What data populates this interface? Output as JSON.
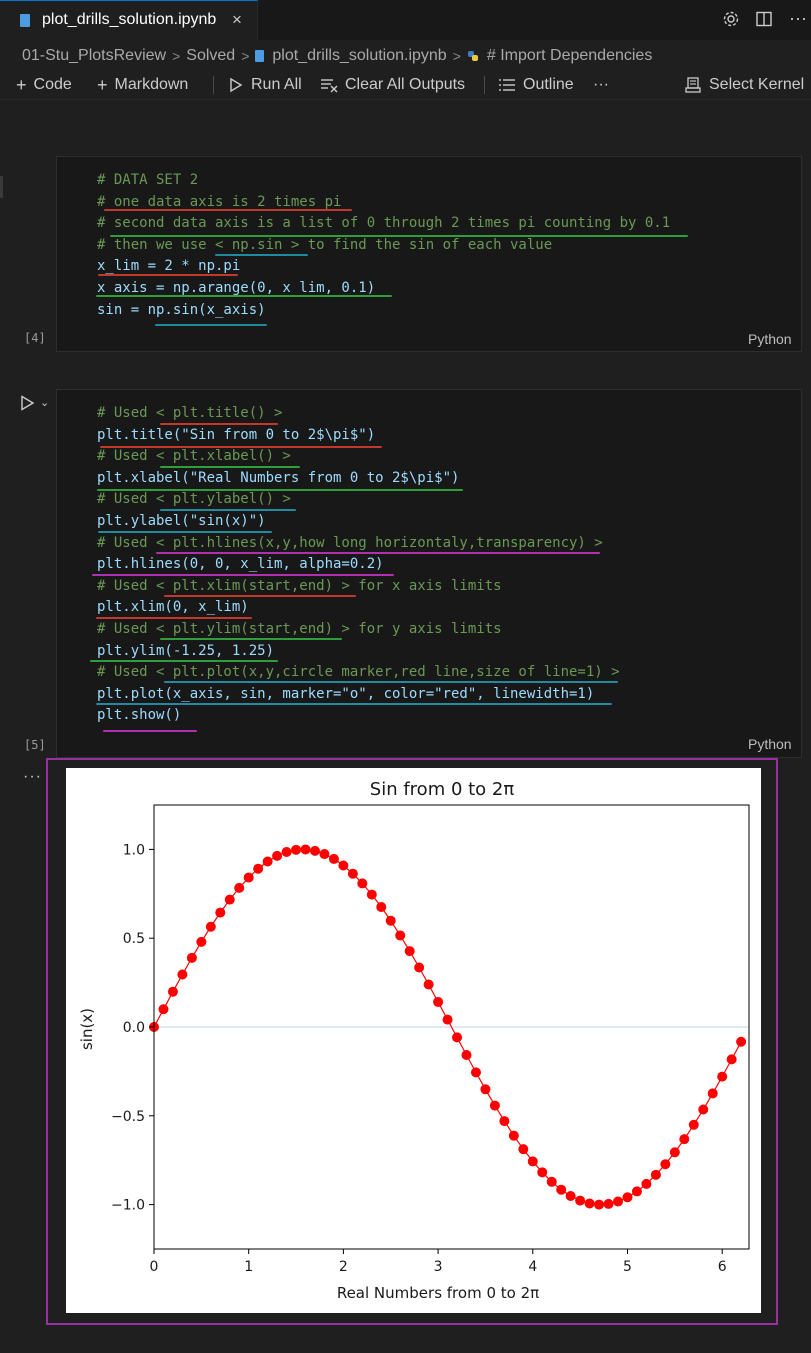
{
  "tab": {
    "label": "plot_drills_solution.ipynb",
    "close": "×"
  },
  "breadcrumb": {
    "items": [
      "01-Stu_PlotsReview",
      "Solved",
      "plot_drills_solution.ipynb",
      "# Import Dependencies"
    ],
    "separator": ">"
  },
  "toolbar": {
    "code": "Code",
    "markdown": "Markdown",
    "run_all": "Run All",
    "clear_outputs": "Clear All Outputs",
    "outline": "Outline",
    "more": "···",
    "select_kernel": "Select Kernel"
  },
  "cell1": {
    "exec_count": "[4]",
    "language": "Python",
    "lines": [
      "# DATA SET 2",
      "# one data axis is 2 times pi",
      "# second data axis is a list of 0 through 2 times pi counting by 0.1",
      "# then we use < np.sin > to find the sin of each value",
      "x_lim = 2 * np.pi",
      "x_axis = np.arange(0, x_lim, 0.1)",
      "sin = np.sin(x_axis)"
    ]
  },
  "cell2": {
    "exec_count": "[5]",
    "language": "Python",
    "lines": [
      "# Used < plt.title() >",
      "plt.title(\"Sin from 0 to 2$\\pi$\")",
      "# Used < plt.xlabel() >",
      "plt.xlabel(\"Real Numbers from 0 to 2$\\pi$\")",
      "# Used < plt.ylabel() >",
      "plt.ylabel(\"sin(x)\")",
      "# Used < plt.hlines(x,y,how long horizontaly,transparency) >",
      "plt.hlines(0, 0, x_lim, alpha=0.2)",
      "# Used < plt.xlim(start,end) > for x axis limits",
      "plt.xlim(0, x_lim)",
      "# Used < plt.ylim(start,end) > for y axis limits",
      "plt.ylim(-1.25, 1.25)",
      "# Used < plt.plot(x,y,circle marker,red line,size of line=1) >",
      "plt.plot(x_axis, sin, marker=\"o\", color=\"red\", linewidth=1)",
      "plt.show()"
    ]
  },
  "output": {
    "more": "···"
  },
  "chart_data": {
    "type": "line",
    "title": "Sin from 0 to 2π",
    "xlabel": "Real Numbers from 0 to 2π",
    "ylabel": "sin(x)",
    "xlim": [
      0,
      6.283185307
    ],
    "ylim": [
      -1.25,
      1.25
    ],
    "xticks": [
      0,
      1,
      2,
      3,
      4,
      5,
      6
    ],
    "yticks": [
      -1.0,
      -0.5,
      0.0,
      0.5,
      1.0
    ],
    "ytick_labels": [
      "−1.0",
      "−0.5",
      "0.0",
      "0.5",
      "1.0"
    ],
    "grid": false,
    "hline": {
      "y": 0,
      "xmin": 0,
      "xmax": 6.283185307,
      "color": "#1f77b4",
      "alpha": 0.2
    },
    "series": [
      {
        "color": "#ff0000",
        "marker": "o",
        "x": [
          0.0,
          0.1,
          0.2,
          0.3,
          0.4,
          0.5,
          0.6,
          0.7,
          0.8,
          0.9,
          1.0,
          1.1,
          1.2,
          1.3,
          1.4,
          1.5,
          1.6,
          1.7,
          1.8,
          1.9,
          2.0,
          2.1,
          2.2,
          2.3,
          2.4,
          2.5,
          2.6,
          2.7,
          2.8,
          2.9,
          3.0,
          3.1,
          3.2,
          3.3,
          3.4,
          3.5,
          3.6,
          3.7,
          3.8,
          3.9,
          4.0,
          4.1,
          4.2,
          4.3,
          4.4,
          4.5,
          4.6,
          4.7,
          4.8,
          4.9,
          5.0,
          5.1,
          5.2,
          5.3,
          5.4,
          5.5,
          5.6,
          5.7,
          5.8,
          5.9,
          6.0,
          6.1,
          6.2
        ],
        "y": [
          0.0,
          0.0998,
          0.1987,
          0.2955,
          0.3894,
          0.4794,
          0.5646,
          0.6442,
          0.7174,
          0.7833,
          0.8415,
          0.8912,
          0.932,
          0.9636,
          0.9854,
          0.9975,
          0.9996,
          0.9917,
          0.9738,
          0.9463,
          0.9093,
          0.8632,
          0.8085,
          0.7457,
          0.6755,
          0.5985,
          0.5155,
          0.4274,
          0.335,
          0.2392,
          0.1411,
          0.0416,
          -0.0584,
          -0.1577,
          -0.2555,
          -0.3508,
          -0.4425,
          -0.5298,
          -0.6119,
          -0.6878,
          -0.7568,
          -0.8183,
          -0.8716,
          -0.9162,
          -0.9516,
          -0.9775,
          -0.9937,
          -0.9999,
          -0.9962,
          -0.9825,
          -0.9589,
          -0.9258,
          -0.8835,
          -0.8323,
          -0.7728,
          -0.7055,
          -0.6313,
          -0.5507,
          -0.4646,
          -0.3739,
          -0.2794,
          -0.1822,
          -0.0831
        ]
      }
    ]
  }
}
